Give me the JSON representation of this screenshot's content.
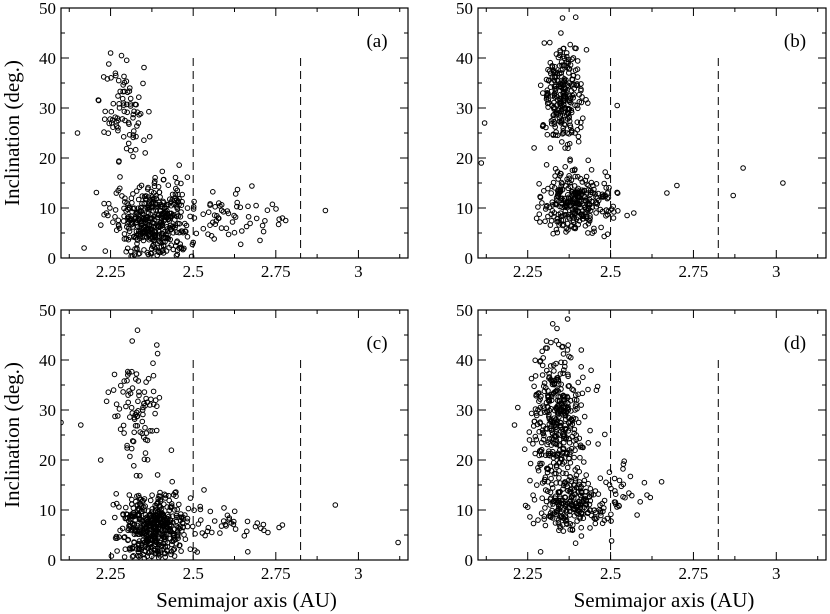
{
  "chart_data": [
    {
      "type": "scatter",
      "panel_label": "(a)",
      "xlim": [
        2.1,
        3.15
      ],
      "ylim": [
        0,
        50
      ],
      "xticks": [
        {
          "value": 2.25,
          "label": "2.25"
        },
        {
          "value": 2.5,
          "label": "2.5"
        },
        {
          "value": 2.75,
          "label": "2.75"
        },
        {
          "value": 3.0,
          "label": "3"
        }
      ],
      "yticks": [
        {
          "value": 0,
          "label": "0"
        },
        {
          "value": 10,
          "label": "10"
        },
        {
          "value": 20,
          "label": "20"
        },
        {
          "value": 30,
          "label": "30"
        },
        {
          "value": 40,
          "label": "40"
        },
        {
          "value": 50,
          "label": "50"
        }
      ],
      "xlabel": "",
      "ylabel": "Inclination (deg.)",
      "vlines": [
        2.5,
        2.825
      ],
      "clusters": [
        {
          "cx": 2.38,
          "cy": 7.5,
          "sx": 0.055,
          "sy": 4.0,
          "n": 430
        },
        {
          "cx": 2.29,
          "cy": 29.0,
          "sx": 0.035,
          "sy": 4.5,
          "n": 85
        },
        {
          "cx": 2.62,
          "cy": 8.0,
          "sx": 0.07,
          "sy": 3.0,
          "n": 55
        }
      ],
      "points": [
        [
          2.17,
          2.0
        ],
        [
          2.9,
          9.5
        ],
        [
          2.25,
          41.0
        ],
        [
          2.15,
          25.0
        ],
        [
          2.78,
          7.5
        ],
        [
          2.77,
          8.0
        ]
      ]
    },
    {
      "type": "scatter",
      "panel_label": "(b)",
      "xlim": [
        2.1,
        3.15
      ],
      "ylim": [
        0,
        50
      ],
      "xticks": [
        {
          "value": 2.25,
          "label": "2.25"
        },
        {
          "value": 2.5,
          "label": "2.5"
        },
        {
          "value": 2.75,
          "label": "2.75"
        },
        {
          "value": 3.0,
          "label": "3"
        }
      ],
      "yticks": [
        {
          "value": 0,
          "label": "0"
        },
        {
          "value": 10,
          "label": "10"
        },
        {
          "value": 20,
          "label": "20"
        },
        {
          "value": 30,
          "label": "30"
        },
        {
          "value": 40,
          "label": "40"
        },
        {
          "value": 50,
          "label": "50"
        }
      ],
      "xlabel": "",
      "ylabel": "",
      "vlines": [
        2.5,
        2.825
      ],
      "clusters": [
        {
          "cx": 2.4,
          "cy": 11.0,
          "sx": 0.05,
          "sy": 3.2,
          "n": 300
        },
        {
          "cx": 2.355,
          "cy": 32.0,
          "sx": 0.03,
          "sy": 5.0,
          "n": 260
        }
      ],
      "points": [
        [
          2.12,
          27.0
        ],
        [
          2.11,
          19.0
        ],
        [
          2.67,
          13.0
        ],
        [
          2.7,
          14.5
        ],
        [
          2.87,
          12.5
        ],
        [
          2.9,
          18.0
        ],
        [
          3.02,
          15.0
        ],
        [
          2.57,
          9.0
        ],
        [
          2.55,
          8.5
        ],
        [
          2.52,
          30.5
        ],
        [
          2.35,
          45.0
        ],
        [
          2.3,
          43.0
        ]
      ]
    },
    {
      "type": "scatter",
      "panel_label": "(c)",
      "xlim": [
        2.1,
        3.15
      ],
      "ylim": [
        0,
        50
      ],
      "xticks": [
        {
          "value": 2.25,
          "label": "2.25"
        },
        {
          "value": 2.5,
          "label": "2.5"
        },
        {
          "value": 2.75,
          "label": "2.75"
        },
        {
          "value": 3.0,
          "label": "3"
        }
      ],
      "yticks": [
        {
          "value": 0,
          "label": "0"
        },
        {
          "value": 10,
          "label": "10"
        },
        {
          "value": 20,
          "label": "20"
        },
        {
          "value": 30,
          "label": "30"
        },
        {
          "value": 40,
          "label": "40"
        },
        {
          "value": 50,
          "label": "50"
        }
      ],
      "xlabel": "Semimajor axis (AU)",
      "ylabel": "Inclination (deg.)",
      "vlines": [
        2.5,
        2.825
      ],
      "clusters": [
        {
          "cx": 2.38,
          "cy": 6.5,
          "sx": 0.05,
          "sy": 3.5,
          "n": 470
        },
        {
          "cx": 2.33,
          "cy": 30.0,
          "sx": 0.035,
          "sy": 6.0,
          "n": 90
        },
        {
          "cx": 2.6,
          "cy": 7.0,
          "sx": 0.06,
          "sy": 2.5,
          "n": 35
        }
      ],
      "points": [
        [
          2.1,
          27.5
        ],
        [
          2.16,
          27.0
        ],
        [
          2.93,
          11.0
        ],
        [
          3.12,
          3.5
        ],
        [
          2.77,
          7.0
        ],
        [
          2.76,
          6.5
        ],
        [
          2.39,
          43.0
        ],
        [
          2.22,
          20.0
        ]
      ]
    },
    {
      "type": "scatter",
      "panel_label": "(d)",
      "xlim": [
        2.1,
        3.15
      ],
      "ylim": [
        0,
        50
      ],
      "xticks": [
        {
          "value": 2.25,
          "label": "2.25"
        },
        {
          "value": 2.5,
          "label": "2.5"
        },
        {
          "value": 2.75,
          "label": "2.75"
        },
        {
          "value": 3.0,
          "label": "3"
        }
      ],
      "yticks": [
        {
          "value": 0,
          "label": "0"
        },
        {
          "value": 10,
          "label": "10"
        },
        {
          "value": 20,
          "label": "20"
        },
        {
          "value": 30,
          "label": "30"
        },
        {
          "value": 40,
          "label": "40"
        },
        {
          "value": 50,
          "label": "50"
        }
      ],
      "xlabel": "Semimajor axis (AU)",
      "ylabel": "",
      "vlines": [
        2.5,
        2.825
      ],
      "clusters": [
        {
          "cx": 2.38,
          "cy": 11.0,
          "sx": 0.05,
          "sy": 3.0,
          "n": 220
        },
        {
          "cx": 2.34,
          "cy": 28.0,
          "sx": 0.04,
          "sy": 7.0,
          "n": 380
        },
        {
          "cx": 2.5,
          "cy": 14.0,
          "sx": 0.05,
          "sy": 3.0,
          "n": 40
        }
      ],
      "points": [
        [
          2.21,
          27.0
        ],
        [
          2.22,
          30.5
        ],
        [
          2.61,
          13.0
        ],
        [
          2.62,
          12.5
        ],
        [
          2.58,
          9.0
        ],
        [
          2.32,
          43.5
        ],
        [
          2.37,
          42.0
        ]
      ]
    }
  ]
}
